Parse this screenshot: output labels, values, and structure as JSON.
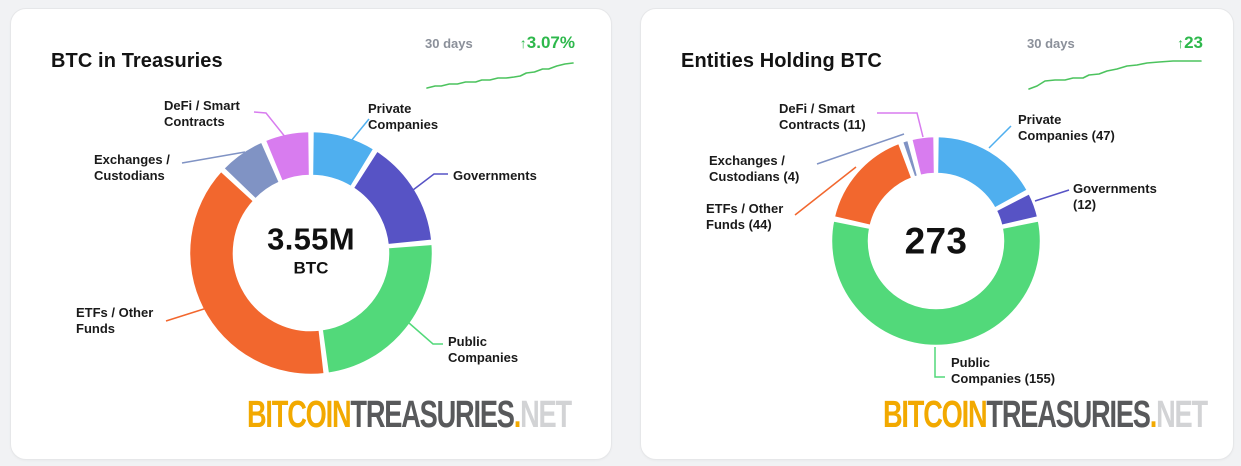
{
  "colors": {
    "page-bg": "#f1f2f4",
    "card-bg": "#ffffff",
    "card-border": "#e6e7e9",
    "title": "#131313",
    "label": "#1a1a1a",
    "muted": "#8b909a",
    "accent-green": "#2eb84c",
    "sparkline": "#4cc35e",
    "wm-orange": "#f2a900",
    "wm-dark": "#58595b",
    "wm-light": "#d2d3d5"
  },
  "watermark": {
    "bitcoin": "BITCOIN",
    "treasuries": "TREASURIES",
    "dot": ".",
    "net": "NET"
  },
  "cards": [
    {
      "title": "BTC in Treasuries",
      "period": "30 days",
      "change_arrow": "↑",
      "change": "3.07%",
      "center": {
        "value": "3.55M",
        "unit": "BTC"
      },
      "callouts": {
        "defi": {
          "lines": [
            "DeFi / Smart",
            "Contracts"
          ]
        },
        "private": {
          "lines": [
            "Private",
            "Companies"
          ]
        },
        "exchanges": {
          "lines": [
            "Exchanges /",
            "Custodians"
          ]
        },
        "governments": {
          "lines": [
            "Governments"
          ]
        },
        "etfs": {
          "lines": [
            "ETFs / Other",
            "Funds"
          ]
        },
        "public": {
          "lines": [
            "Public",
            "Companies"
          ]
        }
      },
      "chart_data": {
        "type": "donut",
        "title": "BTC in Treasuries",
        "center_label": "3.55M BTC",
        "total_btc": "3.55M",
        "trend": {
          "period": "30 days",
          "change_pct": 3.07,
          "direction": "up"
        },
        "segments": [
          {
            "name": "Private Companies",
            "share_pct_est": 8.9,
            "color": "#4fafef"
          },
          {
            "name": "Governments",
            "share_pct_est": 14.7,
            "color": "#5753c5"
          },
          {
            "name": "Public Companies",
            "share_pct_est": 24.4,
            "color": "#52d97a"
          },
          {
            "name": "ETFs / Other Funds",
            "share_pct_est": 39.0,
            "color": "#f2672e"
          },
          {
            "name": "Exchanges / Custodians",
            "share_pct_est": 6.6,
            "color": "#8093c4"
          },
          {
            "name": "DeFi / Smart Contracts",
            "share_pct_est": 6.4,
            "color": "#d87cef"
          }
        ]
      }
    },
    {
      "title": "Entities Holding BTC",
      "period": "30 days",
      "change_arrow": "↑",
      "change": "23",
      "center": {
        "value": "273"
      },
      "callouts": {
        "defi": {
          "lines": [
            "DeFi / Smart",
            "Contracts (11)"
          ]
        },
        "private": {
          "lines": [
            "Private",
            "Companies (47)"
          ]
        },
        "exchanges": {
          "lines": [
            "Exchanges /",
            "Custodians (4)"
          ]
        },
        "governments": {
          "lines": [
            "Governments",
            "(12)"
          ]
        },
        "etfs": {
          "lines": [
            "ETFs / Other",
            "Funds (44)"
          ]
        },
        "public": {
          "lines": [
            "Public",
            "Companies (155)"
          ]
        }
      },
      "chart_data": {
        "type": "donut",
        "title": "Entities Holding BTC",
        "center_label": "273",
        "total": 273,
        "trend": {
          "period": "30 days",
          "change": 23,
          "direction": "up"
        },
        "segments": [
          {
            "name": "Private Companies",
            "value": 47,
            "color": "#4fafef"
          },
          {
            "name": "Governments",
            "value": 12,
            "color": "#5753c5"
          },
          {
            "name": "Public Companies",
            "value": 155,
            "color": "#52d97a"
          },
          {
            "name": "ETFs / Other Funds",
            "value": 44,
            "color": "#f2672e"
          },
          {
            "name": "Exchanges / Custodians",
            "value": 4,
            "color": "#8093c4"
          },
          {
            "name": "DeFi / Smart Contracts",
            "value": 11,
            "color": "#d87cef"
          }
        ]
      }
    }
  ]
}
